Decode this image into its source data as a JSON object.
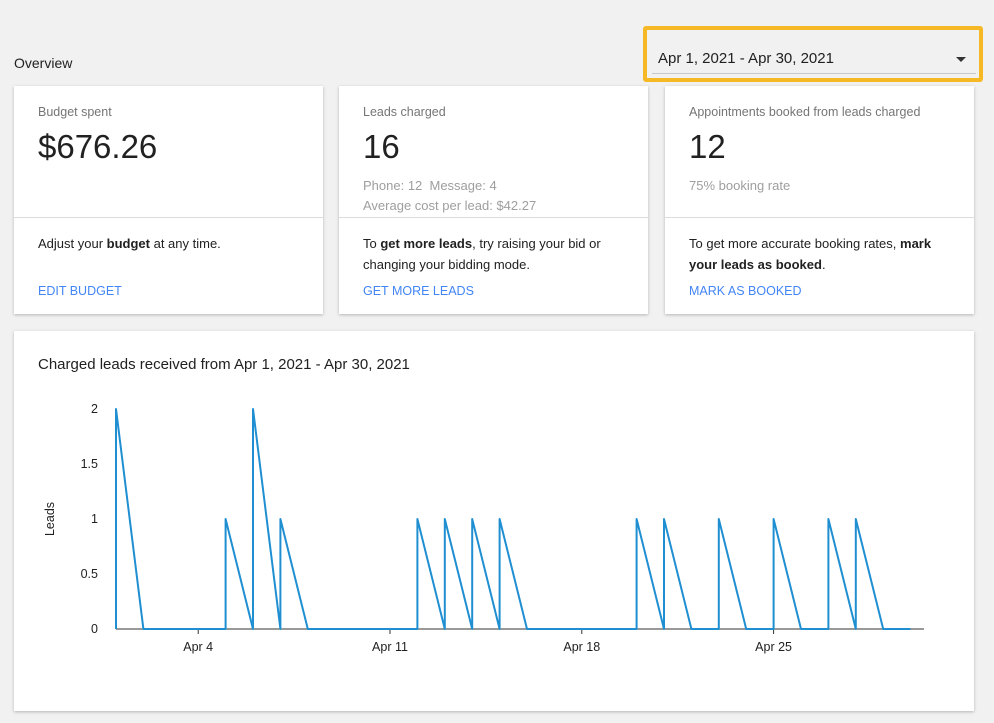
{
  "overview_label": "Overview",
  "date_range": "Apr 1, 2021 - Apr 30, 2021",
  "highlight_color": "#f6b824",
  "accent": "#4285f4",
  "cards": [
    {
      "label": "Budget spent",
      "value": "$676.26",
      "sub": [],
      "msg": [
        {
          "t": "Adjust your "
        },
        {
          "t": "budget",
          "b": true
        },
        {
          "t": " at any time."
        }
      ],
      "action": "EDIT BUDGET"
    },
    {
      "label": "Leads charged",
      "value": "16",
      "sub": [
        "Phone: 12  Message: 4",
        "Average cost per lead: $42.27"
      ],
      "msg": [
        {
          "t": "To "
        },
        {
          "t": "get more leads",
          "b": true
        },
        {
          "t": ", try raising your bid or changing your bidding mode."
        }
      ],
      "action": "GET MORE LEADS"
    },
    {
      "label": "Appointments booked from leads charged",
      "value": "12",
      "sub": [
        "75% booking rate"
      ],
      "msg": [
        {
          "t": "To get more accurate booking rates, "
        },
        {
          "t": "mark your leads as booked",
          "b": true
        },
        {
          "t": "."
        }
      ],
      "action": "MARK AS BOOKED"
    }
  ],
  "chart_data": {
    "type": "line",
    "title": "Charged leads received from Apr 1, 2021 - Apr 30, 2021",
    "ylabel": "Leads",
    "xlabel": "",
    "ylim": [
      0,
      2
    ],
    "yticks": [
      "0",
      "0.5",
      "1",
      "1.5",
      "2"
    ],
    "xticks": [
      {
        "day": 4,
        "label": "Apr 4"
      },
      {
        "day": 11,
        "label": "Apr 11"
      },
      {
        "day": 18,
        "label": "Apr 18"
      },
      {
        "day": 25,
        "label": "Apr 25"
      }
    ],
    "x": [
      1,
      2,
      3,
      4,
      5,
      6,
      7,
      8,
      9,
      10,
      11,
      12,
      13,
      14,
      15,
      16,
      17,
      18,
      19,
      20,
      21,
      22,
      23,
      24,
      25,
      26,
      27,
      28,
      29,
      30
    ],
    "values": [
      2,
      0,
      0,
      0,
      1,
      2,
      1,
      0,
      0,
      0,
      0,
      1,
      1,
      1,
      1,
      0,
      0,
      0,
      0,
      1,
      1,
      0,
      1,
      0,
      1,
      0,
      1,
      1,
      0,
      0
    ],
    "color": "#1f8fd1"
  }
}
